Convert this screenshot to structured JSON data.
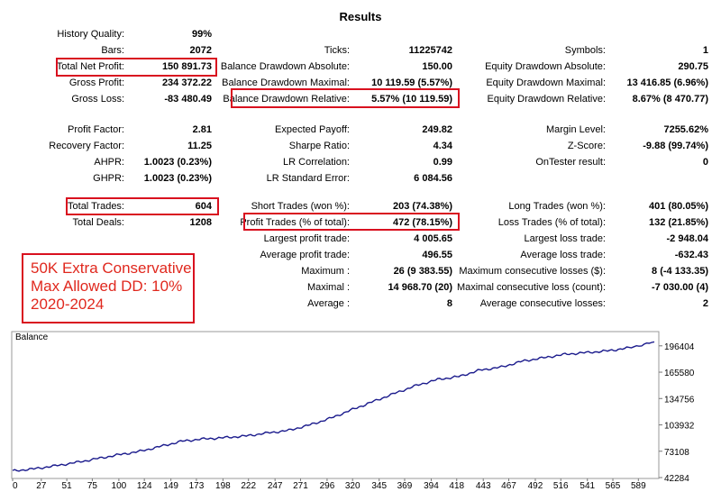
{
  "page": {
    "title": "Results"
  },
  "stats": {
    "col1": [
      {
        "label": "History Quality:",
        "value": "99%"
      },
      {
        "label": "Bars:",
        "value": "2072"
      },
      {
        "label": "Total Net Profit:",
        "value": "150 891.73"
      },
      {
        "label": "Gross Profit:",
        "value": "234 372.22"
      },
      {
        "label": "Gross Loss:",
        "value": "-83 480.49"
      },
      {
        "label": "Profit Factor:",
        "value": "2.81"
      },
      {
        "label": "Recovery Factor:",
        "value": "11.25"
      },
      {
        "label": "AHPR:",
        "value": "1.0023 (0.23%)"
      },
      {
        "label": "GHPR:",
        "value": "1.0023 (0.23%)"
      },
      {
        "label": "Total Trades:",
        "value": "604"
      },
      {
        "label": "Total Deals:",
        "value": "1208"
      }
    ],
    "col2": [
      {
        "label": "Ticks:",
        "value": "11225742"
      },
      {
        "label": "Balance Drawdown Absolute:",
        "value": "150.00"
      },
      {
        "label": "Balance Drawdown Maximal:",
        "value": "10 119.59 (5.57%)"
      },
      {
        "label": "Balance Drawdown Relative:",
        "value": "5.57% (10 119.59)"
      },
      {
        "label": "Expected Payoff:",
        "value": "249.82"
      },
      {
        "label": "Sharpe Ratio:",
        "value": "4.34"
      },
      {
        "label": "LR Correlation:",
        "value": "0.99"
      },
      {
        "label": "LR Standard Error:",
        "value": "6 084.56"
      },
      {
        "label": "Short Trades (won %):",
        "value": "203 (74.38%)"
      },
      {
        "label": "Profit Trades (% of total):",
        "value": "472 (78.15%)"
      },
      {
        "label": "Largest profit trade:",
        "value": "4 005.65"
      },
      {
        "label": "Average profit trade:",
        "value": "496.55"
      },
      {
        "label": "Maximum :",
        "value": "26 (9 383.55)"
      },
      {
        "label": "Maximal :",
        "value": "14 968.70 (20)"
      },
      {
        "label": "Average :",
        "value": "8"
      }
    ],
    "col3": [
      {
        "label": "Symbols:",
        "value": "1"
      },
      {
        "label": "Equity Drawdown Absolute:",
        "value": "290.75"
      },
      {
        "label": "Equity Drawdown Maximal:",
        "value": "13 416.85 (6.96%)"
      },
      {
        "label": "Equity Drawdown Relative:",
        "value": "8.67% (8 470.77)"
      },
      {
        "label": "Margin Level:",
        "value": "7255.62%"
      },
      {
        "label": "Z-Score:",
        "value": "-9.88 (99.74%)"
      },
      {
        "label": "OnTester result:",
        "value": "0"
      },
      {
        "label": "Long Trades (won %):",
        "value": "401 (80.05%)"
      },
      {
        "label": "Loss Trades (% of total):",
        "value": "132 (21.85%)"
      },
      {
        "label": "Largest loss trade:",
        "value": "-2 948.04"
      },
      {
        "label": "Average loss trade:",
        "value": "-632.43"
      },
      {
        "label": "Maximum consecutive losses ($):",
        "value": "8 (-4 133.35)"
      },
      {
        "label": "Maximal consecutive loss (count):",
        "value": "-7 030.00 (4)"
      },
      {
        "label": "Average consecutive losses:",
        "value": "2"
      }
    ]
  },
  "note": {
    "lines": [
      "50K Extra Conservative",
      "Max Allowed DD: 10%",
      "2020-2024"
    ],
    "color": "#e0281e"
  },
  "highlight_color": "#d9101f",
  "chart_data": {
    "type": "line",
    "title": "Balance",
    "x_ticks": [
      "0",
      "27",
      "51",
      "75",
      "100",
      "124",
      "149",
      "173",
      "198",
      "222",
      "247",
      "271",
      "296",
      "320",
      "345",
      "369",
      "394",
      "418",
      "443",
      "467",
      "492",
      "516",
      "541",
      "565",
      "589"
    ],
    "y_ticks": [
      "196404",
      "165580",
      "134756",
      "103932",
      "73108",
      "42284"
    ],
    "ylim": [
      42284,
      212000
    ],
    "xlim": [
      0,
      604
    ],
    "line_color": "#1a1a8c",
    "series": [
      {
        "x": [
          0,
          20,
          40,
          60,
          80,
          100,
          120,
          140,
          160,
          180,
          200,
          220,
          240,
          260,
          280,
          300,
          320,
          340,
          360,
          380,
          400,
          420,
          440,
          460,
          480,
          500,
          520,
          540,
          560,
          580,
          604
        ],
        "values": [
          50000,
          52500,
          56000,
          60000,
          64500,
          69000,
          73000,
          79000,
          85000,
          87500,
          89000,
          91000,
          94500,
          97500,
          104000,
          112000,
          122000,
          131500,
          141000,
          150000,
          157000,
          160500,
          168000,
          171500,
          178500,
          182500,
          186500,
          188500,
          190500,
          194000,
          201000
        ]
      }
    ]
  }
}
